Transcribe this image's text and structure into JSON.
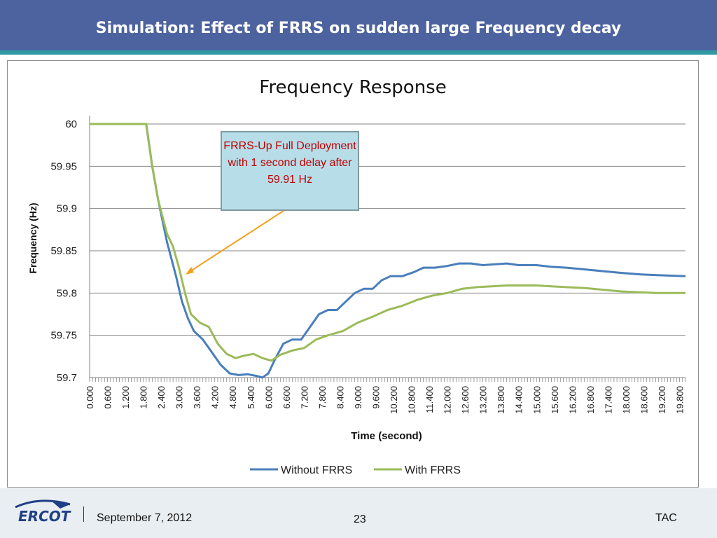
{
  "slide": {
    "title": "Simulation: Effect of FRRS on sudden large Frequency decay",
    "footer": {
      "date": "September 7, 2012",
      "page": "23",
      "right": "TAC",
      "logo_text": "ERCOT"
    }
  },
  "chart_data": {
    "type": "line",
    "title": "Frequency Response",
    "xlabel": "Time (second)",
    "ylabel": "Frequency (Hz)",
    "xlim": [
      0,
      20
    ],
    "ylim": [
      59.7,
      60.0
    ],
    "yticks": [
      "60",
      "59.95",
      "59.9",
      "59.85",
      "59.8",
      "59.75",
      "59.7"
    ],
    "xtick_labels": [
      "0.000",
      "0.600",
      "1.200",
      "1.800",
      "2.400",
      "3.000",
      "3.600",
      "4.200",
      "4.800",
      "5.400",
      "6.000",
      "6.600",
      "7.200",
      "7.800",
      "8.400",
      "9.000",
      "9.600",
      "10.200",
      "10.800",
      "11.400",
      "12.000",
      "12.600",
      "13.200",
      "13.800",
      "14.400",
      "15.000",
      "15.600",
      "16.200",
      "16.800",
      "17.400",
      "18.000",
      "18.600",
      "19.200",
      "19.800"
    ],
    "grid": true,
    "legend": "bottom",
    "annotation": "FRRS-Up Full Deployment with 1 second delay after 59.91 Hz",
    "series": [
      {
        "name": "Without FRRS",
        "color": "#4a7ebb",
        "points": [
          [
            0,
            60
          ],
          [
            1.9,
            60
          ],
          [
            2.1,
            59.95
          ],
          [
            2.3,
            59.91
          ],
          [
            2.6,
            59.86
          ],
          [
            2.9,
            59.82
          ],
          [
            3.1,
            59.79
          ],
          [
            3.3,
            59.77
          ],
          [
            3.5,
            59.755
          ],
          [
            3.8,
            59.745
          ],
          [
            4.1,
            59.73
          ],
          [
            4.4,
            59.715
          ],
          [
            4.7,
            59.705
          ],
          [
            5.0,
            59.703
          ],
          [
            5.3,
            59.704
          ],
          [
            5.6,
            59.702
          ],
          [
            5.8,
            59.7
          ],
          [
            6.0,
            59.705
          ],
          [
            6.2,
            59.72
          ],
          [
            6.5,
            59.74
          ],
          [
            6.8,
            59.745
          ],
          [
            7.1,
            59.745
          ],
          [
            7.4,
            59.76
          ],
          [
            7.7,
            59.775
          ],
          [
            8.0,
            59.78
          ],
          [
            8.3,
            59.78
          ],
          [
            8.6,
            59.79
          ],
          [
            8.9,
            59.8
          ],
          [
            9.2,
            59.805
          ],
          [
            9.5,
            59.805
          ],
          [
            9.8,
            59.815
          ],
          [
            10.1,
            59.82
          ],
          [
            10.5,
            59.82
          ],
          [
            10.9,
            59.825
          ],
          [
            11.2,
            59.83
          ],
          [
            11.6,
            59.83
          ],
          [
            12.0,
            59.832
          ],
          [
            12.4,
            59.835
          ],
          [
            12.8,
            59.835
          ],
          [
            13.2,
            59.833
          ],
          [
            13.6,
            59.834
          ],
          [
            14.0,
            59.835
          ],
          [
            14.4,
            59.833
          ],
          [
            15.0,
            59.833
          ],
          [
            15.5,
            59.831
          ],
          [
            16.0,
            59.83
          ],
          [
            16.6,
            59.828
          ],
          [
            17.2,
            59.826
          ],
          [
            17.8,
            59.824
          ],
          [
            18.5,
            59.822
          ],
          [
            19.2,
            59.821
          ],
          [
            20.0,
            59.82
          ]
        ]
      },
      {
        "name": "With FRRS",
        "color": "#9bbb59",
        "points": [
          [
            0,
            60
          ],
          [
            1.9,
            60
          ],
          [
            2.1,
            59.95
          ],
          [
            2.3,
            59.91
          ],
          [
            2.6,
            59.87
          ],
          [
            2.8,
            59.855
          ],
          [
            3.0,
            59.83
          ],
          [
            3.2,
            59.8
          ],
          [
            3.4,
            59.775
          ],
          [
            3.7,
            59.765
          ],
          [
            4.0,
            59.76
          ],
          [
            4.3,
            59.74
          ],
          [
            4.6,
            59.728
          ],
          [
            4.9,
            59.723
          ],
          [
            5.2,
            59.726
          ],
          [
            5.5,
            59.728
          ],
          [
            5.8,
            59.723
          ],
          [
            6.1,
            59.72
          ],
          [
            6.4,
            59.727
          ],
          [
            6.8,
            59.732
          ],
          [
            7.2,
            59.735
          ],
          [
            7.6,
            59.745
          ],
          [
            8.0,
            59.75
          ],
          [
            8.5,
            59.755
          ],
          [
            9.0,
            59.765
          ],
          [
            9.5,
            59.772
          ],
          [
            10.0,
            59.78
          ],
          [
            10.5,
            59.785
          ],
          [
            11.0,
            59.792
          ],
          [
            11.5,
            59.797
          ],
          [
            12.0,
            59.8
          ],
          [
            12.5,
            59.805
          ],
          [
            13.0,
            59.807
          ],
          [
            13.5,
            59.808
          ],
          [
            14.0,
            59.809
          ],
          [
            14.5,
            59.809
          ],
          [
            15.0,
            59.809
          ],
          [
            15.5,
            59.808
          ],
          [
            16.0,
            59.807
          ],
          [
            16.6,
            59.806
          ],
          [
            17.2,
            59.804
          ],
          [
            17.8,
            59.802
          ],
          [
            18.4,
            59.801
          ],
          [
            19.0,
            59.8
          ],
          [
            20.0,
            59.8
          ]
        ]
      }
    ]
  }
}
